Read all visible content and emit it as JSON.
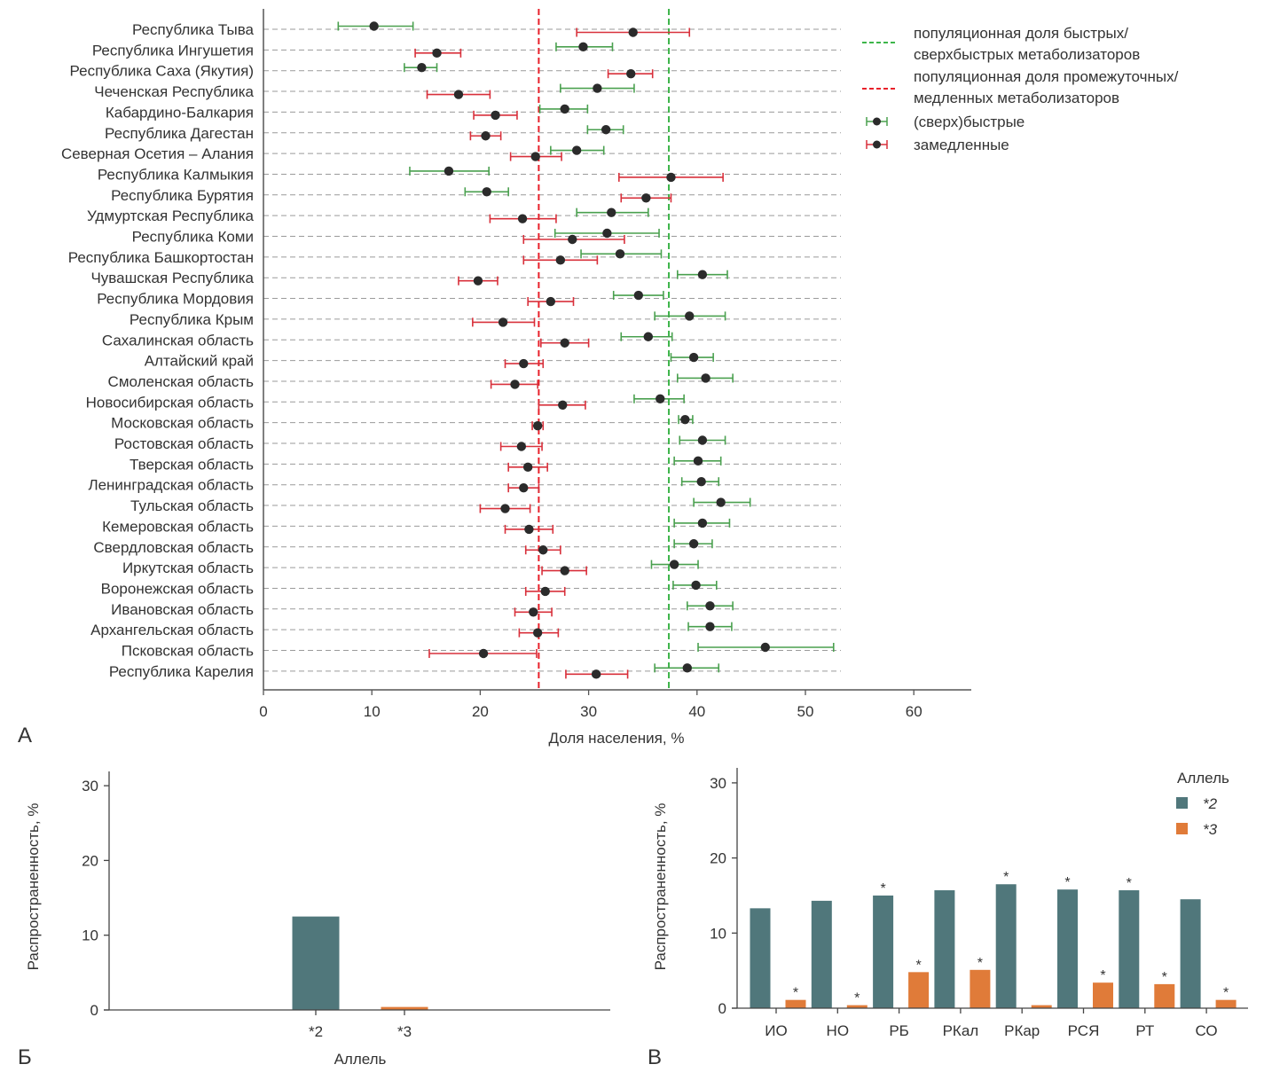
{
  "panels": {
    "a_label": "А",
    "b_label": "Б",
    "c_label": "В"
  },
  "chart_data": [
    {
      "id": "A",
      "type": "scatter",
      "subtype": "forest-plot-horizontal",
      "xlabel": "Доля населения, %",
      "xlim": [
        0,
        65
      ],
      "xticks": [
        0,
        10,
        20,
        30,
        40,
        50,
        60
      ],
      "grid": "horizontal-dashed",
      "legend_position": "top-right",
      "legend": [
        {
          "key": "green_line",
          "label_line1": "популяционная доля быстрых/",
          "label_line2": "сверхбыстрых метаболизаторов",
          "color": "#3db54a"
        },
        {
          "key": "red_line",
          "label_line1": "популяционная доля промежуточных/",
          "label_line2": "медленных метаболизаторов",
          "color": "#e8202a"
        },
        {
          "key": "fast",
          "label": "(сверх)быстрые",
          "color": "#4aa04f"
        },
        {
          "key": "slow",
          "label": "замедленные",
          "color": "#d8303b"
        }
      ],
      "reference_lines": {
        "fast_population": 37.4,
        "slow_population": 25.4
      },
      "categories": [
        "Республика Тыва",
        "Республика Ингушетия",
        "Республика Саха (Якутия)",
        "Чеченская Республика",
        "Кабардино-Балкария",
        "Республика Дагестан",
        "Северная Осетия – Алания",
        "Республика Калмыкия",
        "Республика Бурятия",
        "Удмуртская Республика",
        "Республика Коми",
        "Республика Башкортостан",
        "Чувашская Республика",
        "Республика Мордовия",
        "Республика Крым",
        "Сахалинская область",
        "Алтайский край",
        "Смоленская область",
        "Новосибирская область",
        "Московская область",
        "Ростовская область",
        "Тверская область",
        "Ленинградская область",
        "Тульская область",
        "Кемеровская область",
        "Свердловская область",
        "Иркутская область",
        "Воронежская область",
        "Ивановская область",
        "Архангельская область",
        "Псковская область",
        "Республика Карелия"
      ],
      "series": [
        {
          "name": "(сверх)быстрые",
          "estimate": [
            10.2,
            29.5,
            14.6,
            30.8,
            27.8,
            31.6,
            28.9,
            17.1,
            20.6,
            32.1,
            31.7,
            32.9,
            40.5,
            34.6,
            39.3,
            35.5,
            39.7,
            40.8,
            36.6,
            38.9,
            40.5,
            40.1,
            40.4,
            42.2,
            40.5,
            39.7,
            37.9,
            39.9,
            41.2,
            41.2,
            46.3,
            39.1
          ],
          "ci_low": [
            6.9,
            27.0,
            13.0,
            27.4,
            25.5,
            29.9,
            26.5,
            13.5,
            18.6,
            28.9,
            26.9,
            29.3,
            38.2,
            32.3,
            36.1,
            33.0,
            37.6,
            38.2,
            34.2,
            38.3,
            38.4,
            37.9,
            38.6,
            39.7,
            37.9,
            37.9,
            35.8,
            37.8,
            39.1,
            39.2,
            40.1,
            36.1
          ],
          "ci_high": [
            13.8,
            32.2,
            16.0,
            34.2,
            29.9,
            33.2,
            31.4,
            20.8,
            22.6,
            35.5,
            36.5,
            36.7,
            42.8,
            36.9,
            42.6,
            37.7,
            41.5,
            43.3,
            38.8,
            39.6,
            42.6,
            42.2,
            42.0,
            44.9,
            43.0,
            41.4,
            40.1,
            41.8,
            43.3,
            43.2,
            52.6,
            42.0
          ]
        },
        {
          "name": "замедленные",
          "estimate": [
            34.1,
            16.0,
            33.9,
            18.0,
            21.4,
            20.5,
            25.1,
            37.6,
            35.3,
            23.9,
            28.5,
            27.4,
            19.8,
            26.5,
            22.1,
            27.8,
            24.0,
            23.2,
            27.6,
            25.3,
            23.8,
            24.4,
            24.0,
            22.3,
            24.5,
            25.8,
            27.8,
            26.0,
            24.9,
            25.3,
            20.3,
            30.7
          ],
          "ci_low": [
            28.9,
            14.0,
            31.8,
            15.1,
            19.4,
            19.1,
            22.8,
            32.8,
            33.0,
            20.9,
            24.0,
            24.0,
            18.0,
            24.4,
            19.3,
            25.6,
            22.3,
            21.0,
            25.4,
            24.8,
            21.9,
            22.6,
            22.6,
            20.0,
            22.3,
            24.2,
            25.7,
            24.2,
            23.2,
            23.6,
            15.3,
            27.9
          ],
          "ci_high": [
            39.3,
            18.2,
            35.9,
            20.9,
            23.4,
            21.9,
            27.5,
            42.4,
            37.6,
            27.0,
            33.3,
            30.8,
            21.6,
            28.6,
            25.0,
            30.0,
            25.8,
            25.3,
            29.7,
            25.8,
            25.7,
            26.2,
            25.4,
            24.6,
            26.7,
            27.4,
            29.8,
            27.8,
            26.6,
            27.2,
            25.2,
            33.6
          ]
        }
      ]
    },
    {
      "id": "B",
      "type": "bar",
      "xlabel": "Аллель",
      "ylabel": "Распространенность, %",
      "ylim": [
        0,
        32
      ],
      "yticks": [
        0,
        10,
        20,
        30
      ],
      "categories": [
        "*2",
        "*3"
      ],
      "values": [
        12.5,
        0.4
      ],
      "colors": [
        "#50777b",
        "#e07b39"
      ]
    },
    {
      "id": "C",
      "type": "bar",
      "subtype": "grouped",
      "xlabel": "",
      "ylabel": "Распространенность, %",
      "ylim": [
        0,
        32
      ],
      "yticks": [
        0,
        10,
        20,
        30
      ],
      "categories": [
        "ИО",
        "НО",
        "РБ",
        "РКал",
        "РКар",
        "РСЯ",
        "РТ",
        "СО"
      ],
      "legend_title": "Аллель",
      "legend_position": "top-right",
      "series": [
        {
          "name": "*2",
          "color": "#50777b",
          "values": [
            13.3,
            14.3,
            15.0,
            15.7,
            16.5,
            15.8,
            15.7,
            14.5
          ],
          "significant": [
            false,
            false,
            true,
            false,
            true,
            true,
            true,
            false
          ]
        },
        {
          "name": "*3",
          "color": "#e07b39",
          "values": [
            1.1,
            0.4,
            4.8,
            5.1,
            0.4,
            3.4,
            3.2,
            1.1
          ],
          "significant": [
            true,
            true,
            true,
            true,
            false,
            true,
            true,
            true
          ]
        }
      ],
      "significance_marker": "*"
    }
  ]
}
